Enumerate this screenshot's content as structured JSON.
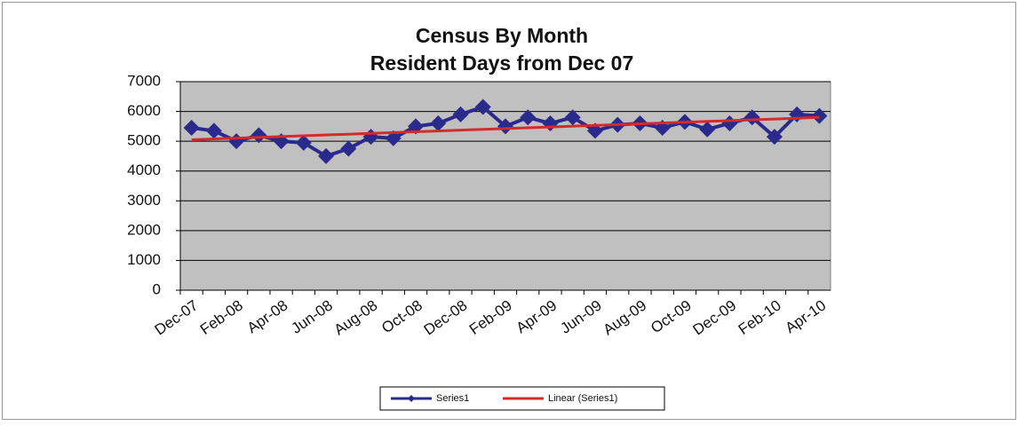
{
  "chart_data": {
    "type": "line",
    "title": "Census By Month",
    "subtitle": "Resident Days from Dec 07",
    "categories": [
      "Dec-07",
      null,
      "Feb-08",
      null,
      "Apr-08",
      null,
      "Jun-08",
      null,
      "Aug-08",
      null,
      "Oct-08",
      null,
      "Dec-08",
      null,
      "Feb-09",
      null,
      "Apr-09",
      null,
      "Jun-09",
      null,
      "Aug-09",
      null,
      "Oct-09",
      null,
      "Dec-09",
      null,
      "Feb-10",
      null,
      "Apr-10"
    ],
    "series": [
      {
        "name": "Series1",
        "color": "#2a2a8c",
        "values": [
          5450,
          5350,
          5000,
          5200,
          5000,
          4950,
          4500,
          4750,
          5150,
          5100,
          5500,
          5600,
          5900,
          6150,
          5500,
          5800,
          5600,
          5800,
          5350,
          5550,
          5600,
          5450,
          5650,
          5400,
          5600,
          5800,
          5150,
          5900,
          5850
        ]
      }
    ],
    "trendline": {
      "name": "Linear (Series1)",
      "color": "#d42a2a",
      "values": [
        5050,
        5800
      ]
    },
    "ylim": [
      0,
      7000
    ],
    "yticks": [
      0,
      1000,
      2000,
      3000,
      4000,
      5000,
      6000,
      7000
    ],
    "grid": true,
    "legend": "bottom"
  }
}
